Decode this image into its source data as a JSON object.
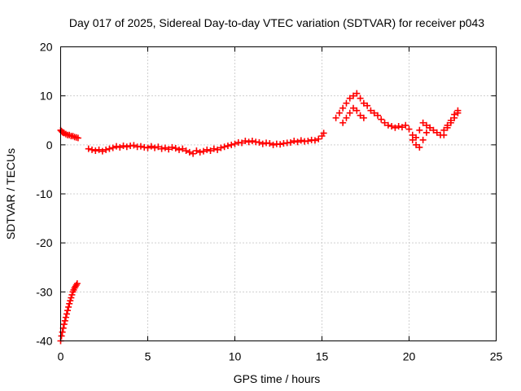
{
  "chart_data": {
    "type": "scatter",
    "title": "Day 017 of 2025, Sidereal Day-to-day VTEC variation (SDTVAR) for receiver p043",
    "xlabel": "GPS time / hours",
    "ylabel": "SDTVAR / TECUs",
    "xlim": [
      0,
      25
    ],
    "ylim": [
      -40,
      20
    ],
    "xticks": [
      0,
      5,
      10,
      15,
      20,
      25
    ],
    "yticks": [
      -40,
      -30,
      -20,
      -10,
      0,
      10,
      20
    ],
    "xtick_labels": [
      "0",
      "5",
      "10",
      "15",
      "20",
      "25"
    ],
    "ytick_labels": [
      "-40",
      "-30",
      "-20",
      "-10",
      "0",
      "10",
      "20"
    ],
    "grid": true,
    "marker": "plus",
    "color": "#ff0000",
    "series": [
      {
        "name": "SDTVAR",
        "x": [
          0.0,
          0.05,
          0.1,
          0.15,
          0.2,
          0.25,
          0.3,
          0.35,
          0.4,
          0.45,
          0.5,
          0.55,
          0.6,
          0.65,
          0.7,
          0.75,
          0.8,
          0.85,
          0.9,
          0.95,
          0.0,
          0.05,
          0.1,
          0.15,
          0.2,
          0.3,
          0.4,
          0.5,
          0.6,
          0.7,
          0.8,
          0.9,
          1.0,
          1.6,
          1.8,
          2.0,
          2.2,
          2.4,
          2.6,
          2.8,
          3.0,
          3.2,
          3.4,
          3.6,
          3.8,
          4.0,
          4.2,
          4.4,
          4.6,
          4.8,
          5.0,
          5.2,
          5.4,
          5.6,
          5.8,
          6.0,
          6.2,
          6.4,
          6.6,
          6.8,
          7.0,
          7.2,
          7.4,
          7.6,
          7.8,
          8.0,
          8.2,
          8.4,
          8.6,
          8.8,
          9.0,
          9.2,
          9.4,
          9.6,
          9.8,
          10.0,
          10.2,
          10.4,
          10.6,
          10.8,
          11.0,
          11.2,
          11.4,
          11.6,
          11.8,
          12.0,
          12.2,
          12.4,
          12.6,
          12.8,
          13.0,
          13.2,
          13.4,
          13.6,
          13.8,
          14.0,
          14.2,
          14.4,
          14.6,
          14.8,
          15.0,
          15.1,
          15.8,
          16.0,
          16.2,
          16.4,
          16.6,
          16.8,
          17.0,
          17.2,
          17.4,
          17.6,
          17.8,
          18.0,
          18.2,
          18.4,
          18.6,
          18.8,
          19.0,
          19.2,
          19.4,
          19.6,
          19.8,
          20.0,
          20.2,
          20.4,
          20.6,
          20.8,
          21.0,
          21.2,
          21.4,
          21.6,
          21.8,
          22.0,
          22.2,
          22.4,
          22.6,
          22.8,
          16.2,
          16.4,
          16.6,
          16.8,
          17.0,
          17.2,
          17.4,
          20.2,
          20.4,
          20.6,
          20.8,
          21.0,
          21.2,
          22.0,
          22.2,
          22.4,
          22.6,
          22.8
        ],
        "y": [
          -40.0,
          -39.0,
          -38.2,
          -37.4,
          -36.6,
          -35.9,
          -35.2,
          -34.5,
          -33.8,
          -33.1,
          -32.4,
          -31.8,
          -31.2,
          -30.6,
          -30.0,
          -29.6,
          -29.2,
          -28.9,
          -28.6,
          -28.3,
          3.0,
          2.8,
          2.6,
          2.5,
          2.4,
          2.2,
          2.0,
          2.0,
          1.8,
          1.8,
          1.6,
          1.5,
          1.4,
          -0.8,
          -1.0,
          -1.2,
          -1.0,
          -1.3,
          -1.0,
          -0.8,
          -0.6,
          -0.3,
          -0.5,
          -0.2,
          -0.4,
          -0.2,
          -0.1,
          -0.4,
          -0.3,
          -0.5,
          -0.6,
          -0.3,
          -0.6,
          -0.4,
          -0.8,
          -0.6,
          -0.9,
          -0.5,
          -0.7,
          -1.0,
          -0.8,
          -1.2,
          -1.5,
          -1.8,
          -1.2,
          -1.5,
          -1.3,
          -1.0,
          -1.2,
          -0.8,
          -1.0,
          -0.6,
          -0.4,
          -0.2,
          0.0,
          0.2,
          0.5,
          0.4,
          0.8,
          0.6,
          0.8,
          0.6,
          0.5,
          0.2,
          0.4,
          0.3,
          0.0,
          0.2,
          0.1,
          0.3,
          0.4,
          0.5,
          0.8,
          0.6,
          0.9,
          0.7,
          0.8,
          1.0,
          0.9,
          1.2,
          1.8,
          2.4,
          5.5,
          6.5,
          7.5,
          8.5,
          9.5,
          10.0,
          10.5,
          9.5,
          8.5,
          8.0,
          7.0,
          6.5,
          6.0,
          5.2,
          4.5,
          4.0,
          3.8,
          3.5,
          3.8,
          3.6,
          4.0,
          3.2,
          2.0,
          0.0,
          -0.5,
          1.0,
          2.5,
          3.5,
          3.0,
          2.5,
          2.0,
          3.0,
          4.0,
          5.0,
          6.2,
          7.0,
          4.5,
          5.5,
          6.5,
          7.5,
          7.0,
          6.0,
          5.5,
          1.0,
          1.5,
          3.0,
          4.5,
          4.0,
          3.5,
          2.0,
          3.5,
          4.5,
          5.5,
          6.5
        ]
      }
    ]
  }
}
